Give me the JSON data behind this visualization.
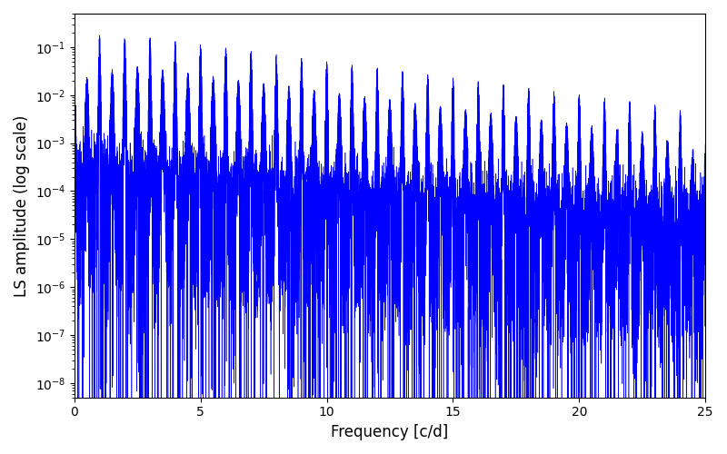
{
  "xlabel": "Frequency [c/d]",
  "ylabel": "LS amplitude (log scale)",
  "title": "",
  "line_color": "blue",
  "xlim": [
    0,
    25
  ],
  "ylim": [
    5e-09,
    0.5
  ],
  "freq_max": 25,
  "n_points": 8000,
  "background_color": "#ffffff",
  "figsize": [
    8.0,
    5.0
  ],
  "dpi": 100,
  "seed": 42,
  "linewidth": 0.4
}
